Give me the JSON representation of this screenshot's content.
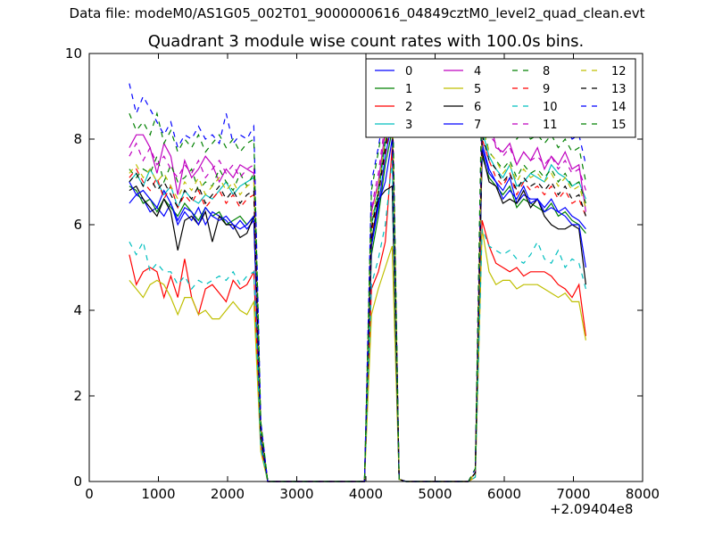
{
  "suptitle": "Data file: modeM0/AS1G05_002T01_9000000616_04849cztM0_level2_quad_clean.evt",
  "chart_data": {
    "type": "line",
    "title": "Quadrant 3 module wise count rates with 100.0s bins.",
    "xlabel": "",
    "ylabel": "",
    "x_offset_label": "+2.09404e8",
    "xlim": [
      0,
      8000
    ],
    "ylim": [
      0,
      10
    ],
    "xticks": [
      0,
      1000,
      2000,
      3000,
      4000,
      5000,
      6000,
      7000,
      8000
    ],
    "yticks": [
      0,
      2,
      4,
      6,
      8,
      10
    ],
    "grid": false,
    "legend_placement": "top-right",
    "legend_columns": 4,
    "x": [
      580,
      680,
      780,
      880,
      980,
      1080,
      1180,
      1280,
      1380,
      1480,
      1580,
      1680,
      1780,
      1880,
      1980,
      2080,
      2180,
      2280,
      2380,
      2480,
      2580,
      2680,
      2780,
      2880,
      2980,
      3080,
      3180,
      3280,
      3380,
      3480,
      3580,
      3680,
      3780,
      3880,
      3980,
      4080,
      4180,
      4280,
      4380,
      4480,
      4580,
      4680,
      4780,
      4880,
      4980,
      5080,
      5180,
      5280,
      5380,
      5480,
      5580,
      5680,
      5780,
      5880,
      5980,
      6080,
      6180,
      6280,
      6380,
      6480,
      6580,
      6680,
      6780,
      6880,
      6980,
      7080,
      7180
    ],
    "series": [
      {
        "name": "0",
        "color": "#0000ff",
        "dash": "solid",
        "values": [
          6.5,
          6.7,
          6.6,
          6.3,
          6.4,
          6.2,
          6.5,
          6.0,
          6.3,
          6.1,
          6.4,
          6.0,
          6.3,
          6.2,
          6.1,
          5.9,
          6.1,
          5.9,
          6.1,
          1.1,
          0,
          0,
          0,
          0,
          0,
          0,
          0,
          0,
          0,
          0,
          0,
          0,
          0,
          0,
          0,
          5.5,
          6.4,
          7.6,
          8.4,
          0.05,
          0,
          0,
          0,
          0,
          0,
          0,
          0,
          0,
          0,
          0,
          0.2,
          7.9,
          7.3,
          7.0,
          6.8,
          7.1,
          6.5,
          6.7,
          6.6,
          6.6,
          6.4,
          6.6,
          6.3,
          6.4,
          6.2,
          6.1,
          5.9
        ]
      },
      {
        "name": "1",
        "color": "#008000",
        "dash": "solid",
        "values": [
          6.9,
          6.8,
          6.5,
          6.6,
          6.3,
          6.6,
          6.4,
          6.2,
          6.5,
          6.3,
          6.1,
          6.4,
          6.2,
          6.3,
          6.0,
          6.1,
          6.2,
          6.0,
          6.2,
          1.0,
          0,
          0,
          0,
          0,
          0,
          0,
          0,
          0,
          0,
          0,
          0,
          0,
          0,
          0,
          0,
          5.3,
          6.2,
          7.4,
          8.2,
          0.05,
          0,
          0,
          0,
          0,
          0,
          0,
          0,
          0,
          0,
          0,
          0.2,
          7.6,
          7.1,
          6.9,
          6.7,
          6.9,
          6.4,
          6.6,
          6.5,
          6.4,
          6.3,
          6.5,
          6.2,
          6.3,
          6.1,
          6.0,
          5.8
        ]
      },
      {
        "name": "2",
        "color": "#ff0000",
        "dash": "solid",
        "values": [
          5.3,
          4.6,
          4.9,
          5.0,
          4.9,
          4.3,
          4.8,
          4.3,
          5.2,
          4.3,
          3.9,
          4.5,
          4.6,
          4.4,
          4.2,
          4.7,
          4.5,
          4.6,
          4.9,
          0.8,
          0,
          0,
          0,
          0,
          0,
          0,
          0,
          0,
          0,
          0,
          0,
          0,
          0,
          0,
          0,
          4.5,
          4.9,
          5.6,
          7.8,
          0.05,
          0,
          0,
          0,
          0,
          0,
          0,
          0,
          0,
          0,
          0,
          0.1,
          6.1,
          5.5,
          5.1,
          5.0,
          4.9,
          5.0,
          4.8,
          4.9,
          4.9,
          4.9,
          4.8,
          4.6,
          4.5,
          4.3,
          4.6,
          3.4
        ]
      },
      {
        "name": "3",
        "color": "#00bfbf",
        "dash": "solid",
        "values": [
          7.0,
          7.2,
          6.9,
          7.3,
          7.0,
          6.7,
          6.9,
          6.4,
          6.8,
          6.6,
          6.5,
          6.7,
          6.6,
          6.8,
          7.0,
          6.7,
          6.9,
          7.0,
          7.1,
          1.2,
          0,
          0,
          0,
          0,
          0,
          0,
          0,
          0,
          0,
          0,
          0,
          0,
          0,
          0,
          0,
          6.0,
          6.7,
          7.9,
          8.9,
          0.05,
          0,
          0,
          0,
          0,
          0,
          0,
          0,
          0,
          0,
          0,
          0.2,
          8.2,
          7.6,
          7.3,
          7.1,
          7.4,
          6.9,
          7.0,
          7.2,
          7.1,
          7.0,
          7.4,
          7.2,
          7.1,
          6.9,
          7.0,
          6.6
        ]
      },
      {
        "name": "4",
        "color": "#bf00bf",
        "dash": "solid",
        "values": [
          7.8,
          8.1,
          8.1,
          7.8,
          7.2,
          7.9,
          7.6,
          6.7,
          7.5,
          7.1,
          7.3,
          7.6,
          7.4,
          7.0,
          7.3,
          7.1,
          7.4,
          7.3,
          7.2,
          1.3,
          0,
          0,
          0,
          0,
          0,
          0,
          0,
          0,
          0,
          0,
          0,
          0,
          0,
          0,
          0,
          6.3,
          7.0,
          8.2,
          8.7,
          0.05,
          0,
          0,
          0,
          0,
          0,
          0,
          0,
          0,
          0,
          0,
          0.2,
          8.3,
          8.6,
          7.8,
          7.7,
          7.9,
          7.4,
          7.7,
          7.5,
          7.8,
          7.3,
          7.6,
          7.4,
          7.7,
          7.3,
          7.4,
          6.3
        ]
      },
      {
        "name": "5",
        "color": "#bfbf00",
        "dash": "solid",
        "values": [
          4.7,
          4.5,
          4.3,
          4.6,
          4.7,
          4.6,
          4.3,
          3.9,
          4.3,
          4.3,
          3.9,
          4.0,
          3.8,
          3.8,
          4.0,
          4.2,
          4.0,
          3.9,
          4.2,
          0.7,
          0,
          0,
          0,
          0,
          0,
          0,
          0,
          0,
          0,
          0,
          0,
          0,
          0,
          0,
          0,
          3.9,
          4.5,
          5.0,
          5.5,
          0.05,
          0,
          0,
          0,
          0,
          0,
          0,
          0,
          0,
          0,
          0,
          0.1,
          5.9,
          4.9,
          4.6,
          4.7,
          4.7,
          4.5,
          4.6,
          4.6,
          4.6,
          4.5,
          4.4,
          4.3,
          4.4,
          4.2,
          4.2,
          3.3
        ]
      },
      {
        "name": "6",
        "color": "#000000",
        "dash": "solid",
        "values": [
          6.8,
          6.9,
          6.6,
          6.4,
          6.2,
          6.6,
          6.3,
          5.4,
          6.1,
          6.2,
          6.0,
          6.3,
          5.6,
          6.2,
          6.0,
          6.0,
          5.7,
          5.8,
          6.2,
          1.0,
          0,
          0,
          0,
          0,
          0,
          0,
          0,
          0,
          0,
          0,
          0,
          0,
          0,
          0,
          0,
          5.6,
          6.6,
          6.8,
          6.9,
          0.05,
          0,
          0,
          0,
          0,
          0,
          0,
          0,
          0,
          0,
          0,
          0.2,
          7.7,
          7.0,
          6.9,
          6.5,
          6.6,
          6.5,
          6.8,
          6.4,
          6.6,
          6.2,
          6.0,
          5.9,
          5.9,
          6.0,
          5.9,
          4.6
        ]
      },
      {
        "name": "7",
        "color": "#0000ff",
        "dash": "solid",
        "values": [
          7.0,
          6.7,
          6.8,
          6.6,
          6.4,
          6.8,
          6.5,
          6.1,
          6.4,
          6.3,
          6.0,
          6.4,
          6.2,
          6.1,
          6.2,
          6.0,
          5.9,
          6.0,
          6.2,
          1.0,
          0,
          0,
          0,
          0,
          0,
          0,
          0,
          0,
          0,
          0,
          0,
          0,
          0,
          0,
          0,
          5.5,
          6.5,
          7.0,
          8.0,
          0.05,
          0,
          0,
          0,
          0,
          0,
          0,
          0,
          0,
          0,
          0,
          0.2,
          7.8,
          7.2,
          7.0,
          6.6,
          6.8,
          6.6,
          6.9,
          6.5,
          6.6,
          6.3,
          6.4,
          6.3,
          6.2,
          6.0,
          6.0,
          5.0
        ]
      },
      {
        "name": "8",
        "color": "#008000",
        "dash": "dashed",
        "values": [
          7.3,
          7.1,
          7.3,
          7.2,
          7.6,
          7.0,
          7.4,
          7.0,
          7.1,
          7.3,
          6.8,
          7.0,
          6.9,
          7.3,
          7.0,
          6.8,
          7.2,
          6.9,
          7.2,
          1.2,
          0,
          0,
          0,
          0,
          0,
          0,
          0,
          0,
          0,
          0,
          0,
          0,
          0,
          0,
          0,
          6.0,
          6.8,
          8.0,
          9.0,
          0.05,
          0,
          0,
          0,
          0,
          0,
          0,
          0,
          0,
          0,
          0,
          0.2,
          8.4,
          7.7,
          7.5,
          7.3,
          7.5,
          7.1,
          7.4,
          7.2,
          7.3,
          7.1,
          7.3,
          7.0,
          7.2,
          6.9,
          7.0,
          6.5
        ]
      },
      {
        "name": "9",
        "color": "#ff0000",
        "dash": "dashed",
        "values": [
          7.1,
          7.3,
          7.0,
          6.8,
          7.1,
          6.6,
          6.9,
          6.4,
          6.7,
          6.5,
          6.8,
          6.4,
          6.6,
          6.8,
          6.5,
          6.7,
          6.4,
          6.6,
          6.7,
          1.1,
          0,
          0,
          0,
          0,
          0,
          0,
          0,
          0,
          0,
          0,
          0,
          0,
          0,
          0,
          0,
          5.8,
          6.7,
          7.7,
          8.6,
          0.05,
          0,
          0,
          0,
          0,
          0,
          0,
          0,
          0,
          0,
          0,
          0.2,
          8.0,
          7.5,
          7.1,
          6.9,
          7.2,
          6.7,
          7.0,
          6.8,
          6.9,
          6.7,
          6.9,
          6.6,
          6.8,
          6.5,
          6.6,
          6.2
        ]
      },
      {
        "name": "10",
        "color": "#00bfbf",
        "dash": "dashed",
        "values": [
          5.6,
          5.3,
          5.6,
          4.9,
          5.1,
          4.9,
          4.9,
          4.6,
          4.8,
          4.5,
          4.7,
          4.6,
          4.7,
          4.8,
          4.7,
          4.9,
          4.6,
          4.8,
          4.9,
          0.8,
          0,
          0,
          0,
          0,
          0,
          0,
          0,
          0,
          0,
          0,
          0,
          0,
          0,
          0,
          0,
          4.6,
          5.2,
          6.0,
          7.5,
          0.05,
          0,
          0,
          0,
          0,
          0,
          0,
          0,
          0,
          0,
          0,
          0.1,
          5.9,
          5.5,
          5.4,
          5.3,
          5.4,
          5.2,
          5.1,
          5.3,
          5.6,
          5.2,
          5.1,
          5.4,
          5.0,
          5.2,
          5.1,
          4.5
        ]
      },
      {
        "name": "11",
        "color": "#bf00bf",
        "dash": "dashed",
        "values": [
          7.6,
          7.9,
          7.5,
          7.8,
          7.4,
          7.6,
          7.3,
          7.1,
          7.4,
          7.2,
          7.5,
          7.1,
          7.3,
          7.5,
          7.2,
          7.4,
          7.1,
          7.3,
          7.4,
          1.3,
          0,
          0,
          0,
          0,
          0,
          0,
          0,
          0,
          0,
          0,
          0,
          0,
          0,
          0,
          0,
          6.4,
          7.2,
          8.4,
          9.3,
          0.05,
          0,
          0,
          0,
          0,
          0,
          0,
          0,
          0,
          0,
          0,
          0.2,
          8.8,
          8.1,
          7.9,
          7.6,
          7.8,
          7.4,
          7.7,
          7.5,
          7.6,
          7.4,
          7.6,
          7.3,
          7.5,
          7.2,
          7.3,
          6.8
        ]
      },
      {
        "name": "12",
        "color": "#bfbf00",
        "dash": "dashed",
        "values": [
          7.2,
          7.4,
          7.1,
          7.3,
          7.0,
          7.2,
          6.9,
          6.6,
          7.0,
          6.8,
          7.1,
          6.7,
          6.9,
          7.1,
          6.8,
          7.0,
          6.7,
          6.9,
          7.0,
          1.2,
          0,
          0,
          0,
          0,
          0,
          0,
          0,
          0,
          0,
          0,
          0,
          0,
          0,
          0,
          0,
          6.1,
          6.9,
          8.0,
          8.9,
          0.05,
          0,
          0,
          0,
          0,
          0,
          0,
          0,
          0,
          0,
          0,
          0.2,
          8.3,
          7.7,
          7.5,
          7.2,
          7.4,
          7.0,
          7.3,
          7.1,
          7.2,
          7.0,
          7.2,
          6.9,
          7.1,
          6.8,
          6.9,
          6.4
        ]
      },
      {
        "name": "13",
        "color": "#000000",
        "dash": "dashed",
        "values": [
          7.0,
          7.2,
          6.9,
          7.1,
          6.8,
          7.0,
          6.7,
          6.4,
          6.8,
          6.6,
          6.9,
          6.5,
          6.7,
          6.9,
          6.6,
          6.8,
          6.5,
          6.7,
          6.8,
          1.1,
          0,
          0,
          0,
          0,
          0,
          0,
          0,
          0,
          0,
          0,
          0,
          0,
          0,
          0,
          0,
          5.9,
          6.7,
          7.8,
          8.7,
          0.05,
          0,
          0,
          0,
          0,
          0,
          0,
          0,
          0,
          0,
          0,
          0.2,
          8.1,
          7.5,
          7.3,
          7.0,
          7.2,
          6.8,
          7.1,
          6.9,
          7.0,
          6.8,
          7.0,
          6.7,
          6.9,
          6.6,
          6.7,
          6.2
        ]
      },
      {
        "name": "14",
        "color": "#0000ff",
        "dash": "dashed",
        "values": [
          9.3,
          8.6,
          9.0,
          8.7,
          8.4,
          8.1,
          8.4,
          7.8,
          8.1,
          8.0,
          8.3,
          8.0,
          8.1,
          7.9,
          8.6,
          7.9,
          8.1,
          8.0,
          8.3,
          1.4,
          0,
          0,
          0,
          0,
          0,
          0,
          0,
          0,
          0,
          0,
          0,
          0,
          0,
          0,
          0,
          7.0,
          7.8,
          8.8,
          9.4,
          0.05,
          0,
          0,
          0,
          0,
          0,
          0,
          0,
          0,
          0,
          0,
          0.3,
          9.2,
          8.7,
          8.5,
          8.3,
          8.6,
          8.2,
          8.4,
          8.3,
          8.5,
          8.2,
          8.4,
          8.1,
          8.3,
          8.0,
          8.1,
          7.4
        ]
      },
      {
        "name": "15",
        "color": "#008000",
        "dash": "dashed",
        "values": [
          8.6,
          8.2,
          8.4,
          8.1,
          8.6,
          7.9,
          8.2,
          7.7,
          8.0,
          7.8,
          8.1,
          7.7,
          7.9,
          8.1,
          7.8,
          8.0,
          7.7,
          7.9,
          8.0,
          1.4,
          0,
          0,
          0,
          0,
          0,
          0,
          0,
          0,
          0,
          0,
          0,
          0,
          0,
          0,
          0,
          6.8,
          7.7,
          8.7,
          9.6,
          0.05,
          0,
          0,
          0,
          0,
          0,
          0,
          0,
          0,
          0,
          0,
          0.3,
          9.6,
          8.6,
          8.3,
          8.1,
          8.4,
          8.0,
          8.2,
          8.0,
          8.1,
          7.9,
          8.1,
          7.8,
          8.0,
          7.7,
          7.8,
          7.0
        ]
      }
    ]
  }
}
